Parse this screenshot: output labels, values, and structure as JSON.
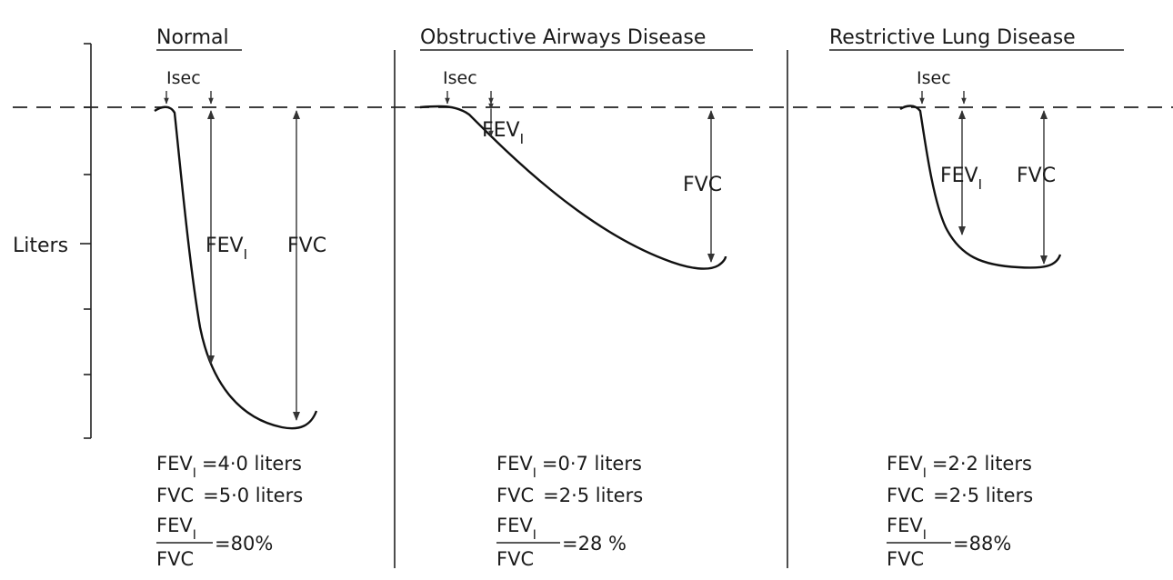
{
  "y_axis_label": "Liters",
  "panels": [
    {
      "title": "Normal",
      "marker_1sec": "Isec",
      "fev_label": "FEV",
      "fev_sub": "I",
      "fvc_label": "FVC",
      "results": {
        "fev_line_label": "FEV",
        "fev_line_sub": "I",
        "fev_line_value": "=4·0 liters",
        "fvc_line_label": "FVC",
        "fvc_line_value": "=5·0 liters",
        "ratio_num": "FEV",
        "ratio_num_sub": "I",
        "ratio_den": "FVC",
        "ratio_value": "=80%"
      }
    },
    {
      "title": "Obstructive Airways Disease",
      "marker_1sec": "Isec",
      "fev_label": "FEV",
      "fev_sub": "I",
      "fvc_label": "FVC",
      "results": {
        "fev_line_label": "FEV",
        "fev_line_sub": "I",
        "fev_line_value": "=0·7 liters",
        "fvc_line_label": "FVC",
        "fvc_line_value": "=2·5 liters",
        "ratio_num": "FEV",
        "ratio_num_sub": "I",
        "ratio_den": "FVC",
        "ratio_value": "=28 %"
      }
    },
    {
      "title": "Restrictive Lung Disease",
      "marker_1sec": "Isec",
      "fev_label": "FEV",
      "fev_sub": "I",
      "fvc_label": "FVC",
      "results": {
        "fev_line_label": "FEV",
        "fev_line_sub": "I",
        "fev_line_value": "=2·2 liters",
        "fvc_line_label": "FVC",
        "fvc_line_value": "=2·5 liters",
        "ratio_num": "FEV",
        "ratio_num_sub": "I",
        "ratio_den": "FVC",
        "ratio_value": "=88%"
      }
    }
  ]
}
